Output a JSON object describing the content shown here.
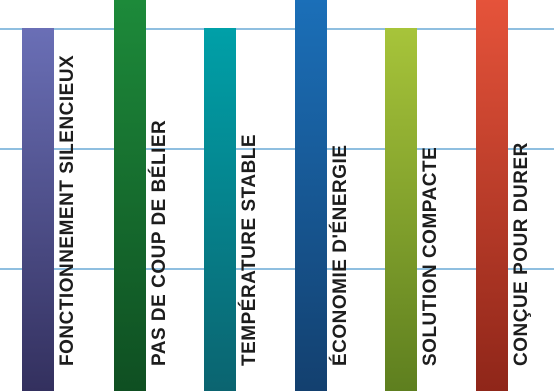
{
  "lines_color": "#8fbfe0",
  "bars": [
    {
      "label": "FONCTIONNEMENT SILENCIEUX",
      "color_top": "#6a6fb6",
      "color_bottom": "#33305e",
      "level": "short"
    },
    {
      "label": "PAS DE COUP DE BÉLIER",
      "color_top": "#1d8a3a",
      "color_bottom": "#0f4f22",
      "level": "tall"
    },
    {
      "label": "TEMPÉRATURE STABLE",
      "color_top": "#00a0a8",
      "color_bottom": "#0b6470",
      "level": "short"
    },
    {
      "label": "ÉCONOMIE D'ÉNERGIE",
      "color_top": "#1b6fb8",
      "color_bottom": "#13406f",
      "level": "tall"
    },
    {
      "label": "SOLUTION COMPACTE",
      "color_top": "#a7c43a",
      "color_bottom": "#5e7f1f",
      "level": "short"
    },
    {
      "label": "CONÇUE POUR DURER",
      "color_top": "#e5533a",
      "color_bottom": "#8f2619",
      "level": "tall"
    }
  ]
}
